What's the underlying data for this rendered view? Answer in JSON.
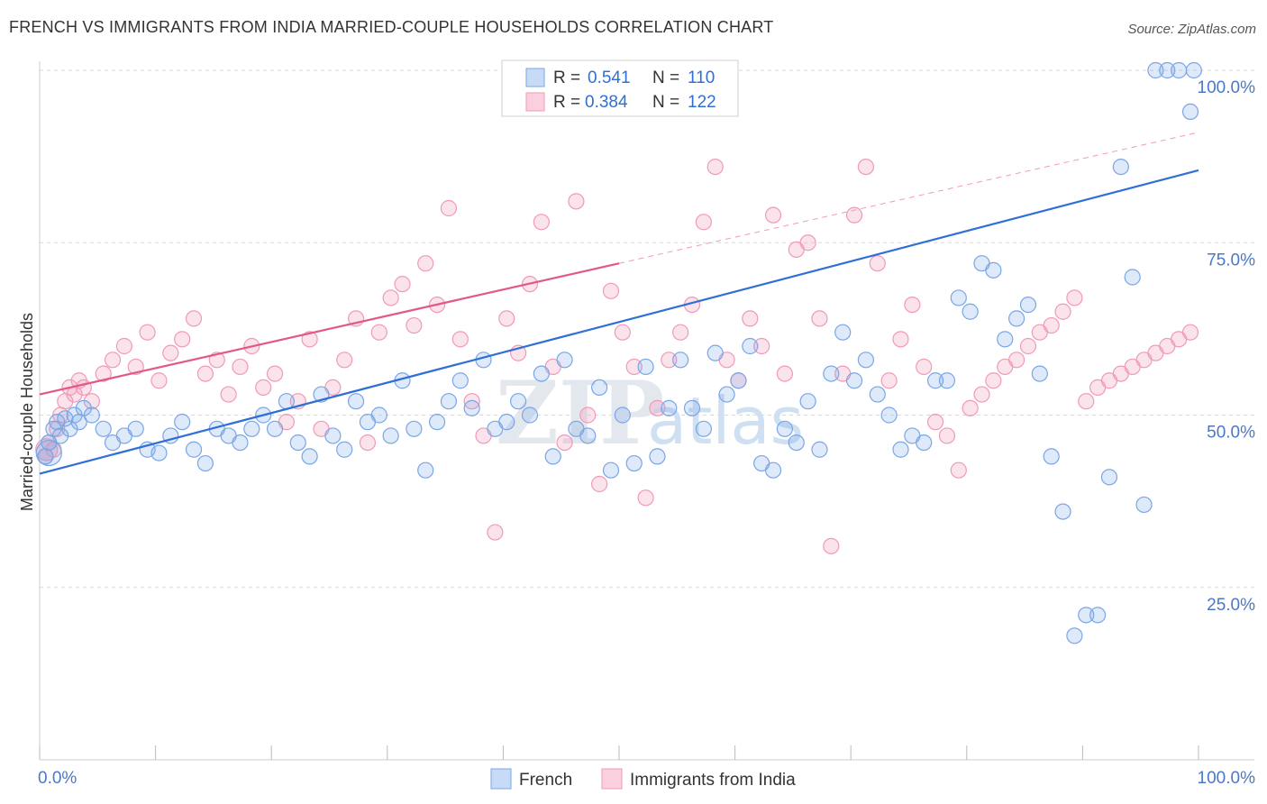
{
  "title": "FRENCH VS IMMIGRANTS FROM INDIA MARRIED-COUPLE HOUSEHOLDS CORRELATION CHART",
  "source": "Source: ZipAtlas.com",
  "watermark": {
    "zip": "ZIP",
    "atlas": "atlas"
  },
  "colors": {
    "french": "#7aa6e6",
    "french_line": "#2f6fd6",
    "india": "#f09ab7",
    "india_line": "#e2588a",
    "grid": "#d8d8d8",
    "tick": "#4a78c8"
  },
  "chart_data": {
    "type": "scatter",
    "title": "FRENCH VS IMMIGRANTS FROM INDIA MARRIED-COUPLE HOUSEHOLDS CORRELATION CHART",
    "xlabel": "",
    "ylabel": "Married-couple Households",
    "xlim": [
      0,
      100
    ],
    "ylim": [
      0,
      100
    ],
    "x_tick_labels": [
      "0.0%",
      "100.0%"
    ],
    "y_ticks": [
      25,
      50,
      75,
      100
    ],
    "y_tick_labels": [
      "25.0%",
      "50.0%",
      "75.0%",
      "100.0%"
    ],
    "grid": true,
    "legend_top": [
      {
        "series": "French",
        "r_label": "R =",
        "r_value": "0.541",
        "n_label": "N =",
        "n_value": "110"
      },
      {
        "series": "Immigrants from India",
        "r_label": "R =",
        "r_value": "0.384",
        "n_label": "N =",
        "n_value": "122"
      }
    ],
    "legend_bottom": [
      "French",
      "Immigrants from India"
    ],
    "series": [
      {
        "name": "French",
        "trend": {
          "x0": 0,
          "y0": 41.5,
          "x1": 100,
          "y1": 85.5,
          "dashed_from": null
        },
        "points": [
          [
            0.5,
            44
          ],
          [
            0.8,
            46
          ],
          [
            1.2,
            48
          ],
          [
            1.5,
            49
          ],
          [
            1.8,
            47
          ],
          [
            2.2,
            49.5
          ],
          [
            2.6,
            48
          ],
          [
            3.0,
            50
          ],
          [
            3.4,
            49
          ],
          [
            3.8,
            51
          ],
          [
            4.5,
            50
          ],
          [
            5.5,
            48
          ],
          [
            6.3,
            46
          ],
          [
            7.3,
            47
          ],
          [
            8.3,
            48
          ],
          [
            9.3,
            45
          ],
          [
            10.3,
            44.5
          ],
          [
            11.3,
            47
          ],
          [
            12.3,
            49
          ],
          [
            13.3,
            45
          ],
          [
            14.3,
            43
          ],
          [
            15.3,
            48
          ],
          [
            16.3,
            47
          ],
          [
            17.3,
            46
          ],
          [
            18.3,
            48
          ],
          [
            19.3,
            50
          ],
          [
            20.3,
            48
          ],
          [
            21.3,
            52
          ],
          [
            22.3,
            46
          ],
          [
            23.3,
            44
          ],
          [
            24.3,
            53
          ],
          [
            25.3,
            47
          ],
          [
            26.3,
            45
          ],
          [
            27.3,
            52
          ],
          [
            28.3,
            49
          ],
          [
            29.3,
            50
          ],
          [
            30.3,
            47
          ],
          [
            31.3,
            55
          ],
          [
            32.3,
            48
          ],
          [
            33.3,
            42
          ],
          [
            34.3,
            49
          ],
          [
            35.3,
            52
          ],
          [
            36.3,
            55
          ],
          [
            37.3,
            51
          ],
          [
            38.3,
            58
          ],
          [
            39.3,
            48
          ],
          [
            40.3,
            49
          ],
          [
            41.3,
            52
          ],
          [
            42.3,
            50
          ],
          [
            43.3,
            56
          ],
          [
            44.3,
            44
          ],
          [
            45.3,
            58
          ],
          [
            46.3,
            48
          ],
          [
            47.3,
            47
          ],
          [
            48.3,
            54
          ],
          [
            49.3,
            42
          ],
          [
            50.3,
            50
          ],
          [
            51.3,
            43
          ],
          [
            52.3,
            57
          ],
          [
            53.3,
            44
          ],
          [
            54.3,
            51
          ],
          [
            55.3,
            58
          ],
          [
            56.3,
            51
          ],
          [
            57.3,
            48
          ],
          [
            58.3,
            59
          ],
          [
            59.3,
            53
          ],
          [
            60.3,
            55
          ],
          [
            61.3,
            60
          ],
          [
            62.3,
            43
          ],
          [
            63.3,
            42
          ],
          [
            64.3,
            48
          ],
          [
            65.3,
            46
          ],
          [
            66.3,
            52
          ],
          [
            67.3,
            45
          ],
          [
            68.3,
            56
          ],
          [
            69.3,
            62
          ],
          [
            70.3,
            55
          ],
          [
            71.3,
            58
          ],
          [
            72.3,
            53
          ],
          [
            73.3,
            50
          ],
          [
            74.3,
            45
          ],
          [
            75.3,
            47
          ],
          [
            76.3,
            46
          ],
          [
            77.3,
            55
          ],
          [
            78.3,
            55
          ],
          [
            79.3,
            67
          ],
          [
            80.3,
            65
          ],
          [
            81.3,
            72
          ],
          [
            82.3,
            71
          ],
          [
            83.3,
            61
          ],
          [
            84.3,
            64
          ],
          [
            85.3,
            66
          ],
          [
            86.3,
            56
          ],
          [
            87.3,
            44
          ],
          [
            88.3,
            36
          ],
          [
            89.3,
            18
          ],
          [
            90.3,
            21
          ],
          [
            91.3,
            21
          ],
          [
            92.3,
            41
          ],
          [
            93.3,
            86
          ],
          [
            94.3,
            70
          ],
          [
            95.3,
            37
          ],
          [
            96.3,
            100
          ],
          [
            97.3,
            100
          ],
          [
            98.3,
            100
          ],
          [
            99.3,
            94
          ],
          [
            99.6,
            100
          ]
        ]
      },
      {
        "name": "Immigrants from India",
        "trend": {
          "x0": 0,
          "y0": 53,
          "x1": 100,
          "y1": 91,
          "dashed_from": 50
        },
        "points": [
          [
            0.5,
            44
          ],
          [
            0.8,
            46
          ],
          [
            1.2,
            45
          ],
          [
            1.5,
            48
          ],
          [
            1.8,
            50
          ],
          [
            2.2,
            52
          ],
          [
            2.6,
            54
          ],
          [
            3.0,
            53
          ],
          [
            3.4,
            55
          ],
          [
            3.8,
            54
          ],
          [
            4.5,
            52
          ],
          [
            5.5,
            56
          ],
          [
            6.3,
            58
          ],
          [
            7.3,
            60
          ],
          [
            8.3,
            57
          ],
          [
            9.3,
            62
          ],
          [
            10.3,
            55
          ],
          [
            11.3,
            59
          ],
          [
            12.3,
            61
          ],
          [
            13.3,
            64
          ],
          [
            14.3,
            56
          ],
          [
            15.3,
            58
          ],
          [
            16.3,
            53
          ],
          [
            17.3,
            57
          ],
          [
            18.3,
            60
          ],
          [
            19.3,
            54
          ],
          [
            20.3,
            56
          ],
          [
            21.3,
            49
          ],
          [
            22.3,
            52
          ],
          [
            23.3,
            61
          ],
          [
            24.3,
            48
          ],
          [
            25.3,
            54
          ],
          [
            26.3,
            58
          ],
          [
            27.3,
            64
          ],
          [
            28.3,
            46
          ],
          [
            29.3,
            62
          ],
          [
            30.3,
            67
          ],
          [
            31.3,
            69
          ],
          [
            32.3,
            63
          ],
          [
            33.3,
            72
          ],
          [
            34.3,
            66
          ],
          [
            35.3,
            80
          ],
          [
            36.3,
            61
          ],
          [
            37.3,
            52
          ],
          [
            38.3,
            47
          ],
          [
            39.3,
            33
          ],
          [
            40.3,
            64
          ],
          [
            41.3,
            59
          ],
          [
            42.3,
            69
          ],
          [
            43.3,
            78
          ],
          [
            44.3,
            57
          ],
          [
            45.3,
            46
          ],
          [
            46.3,
            81
          ],
          [
            47.3,
            50
          ],
          [
            48.3,
            40
          ],
          [
            49.3,
            68
          ],
          [
            50.3,
            62
          ],
          [
            51.3,
            57
          ],
          [
            52.3,
            38
          ],
          [
            53.3,
            51
          ],
          [
            54.3,
            58
          ],
          [
            55.3,
            62
          ],
          [
            56.3,
            66
          ],
          [
            57.3,
            78
          ],
          [
            58.3,
            86
          ],
          [
            59.3,
            58
          ],
          [
            60.3,
            55
          ],
          [
            61.3,
            64
          ],
          [
            62.3,
            60
          ],
          [
            63.3,
            79
          ],
          [
            64.3,
            56
          ],
          [
            65.3,
            74
          ],
          [
            66.3,
            75
          ],
          [
            67.3,
            64
          ],
          [
            68.3,
            31
          ],
          [
            69.3,
            56
          ],
          [
            70.3,
            79
          ],
          [
            71.3,
            86
          ],
          [
            72.3,
            72
          ],
          [
            73.3,
            55
          ],
          [
            74.3,
            61
          ],
          [
            75.3,
            66
          ],
          [
            76.3,
            57
          ],
          [
            77.3,
            49
          ],
          [
            78.3,
            47
          ],
          [
            79.3,
            42
          ],
          [
            80.3,
            51
          ],
          [
            81.3,
            53
          ],
          [
            82.3,
            55
          ],
          [
            83.3,
            57
          ],
          [
            84.3,
            58
          ],
          [
            85.3,
            60
          ],
          [
            86.3,
            62
          ],
          [
            87.3,
            63
          ],
          [
            88.3,
            65
          ],
          [
            89.3,
            67
          ],
          [
            90.3,
            52
          ],
          [
            91.3,
            54
          ],
          [
            92.3,
            55
          ],
          [
            93.3,
            56
          ],
          [
            94.3,
            57
          ],
          [
            95.3,
            58
          ],
          [
            96.3,
            59
          ],
          [
            97.3,
            60
          ],
          [
            98.3,
            61
          ],
          [
            99.3,
            62
          ]
        ]
      }
    ]
  }
}
